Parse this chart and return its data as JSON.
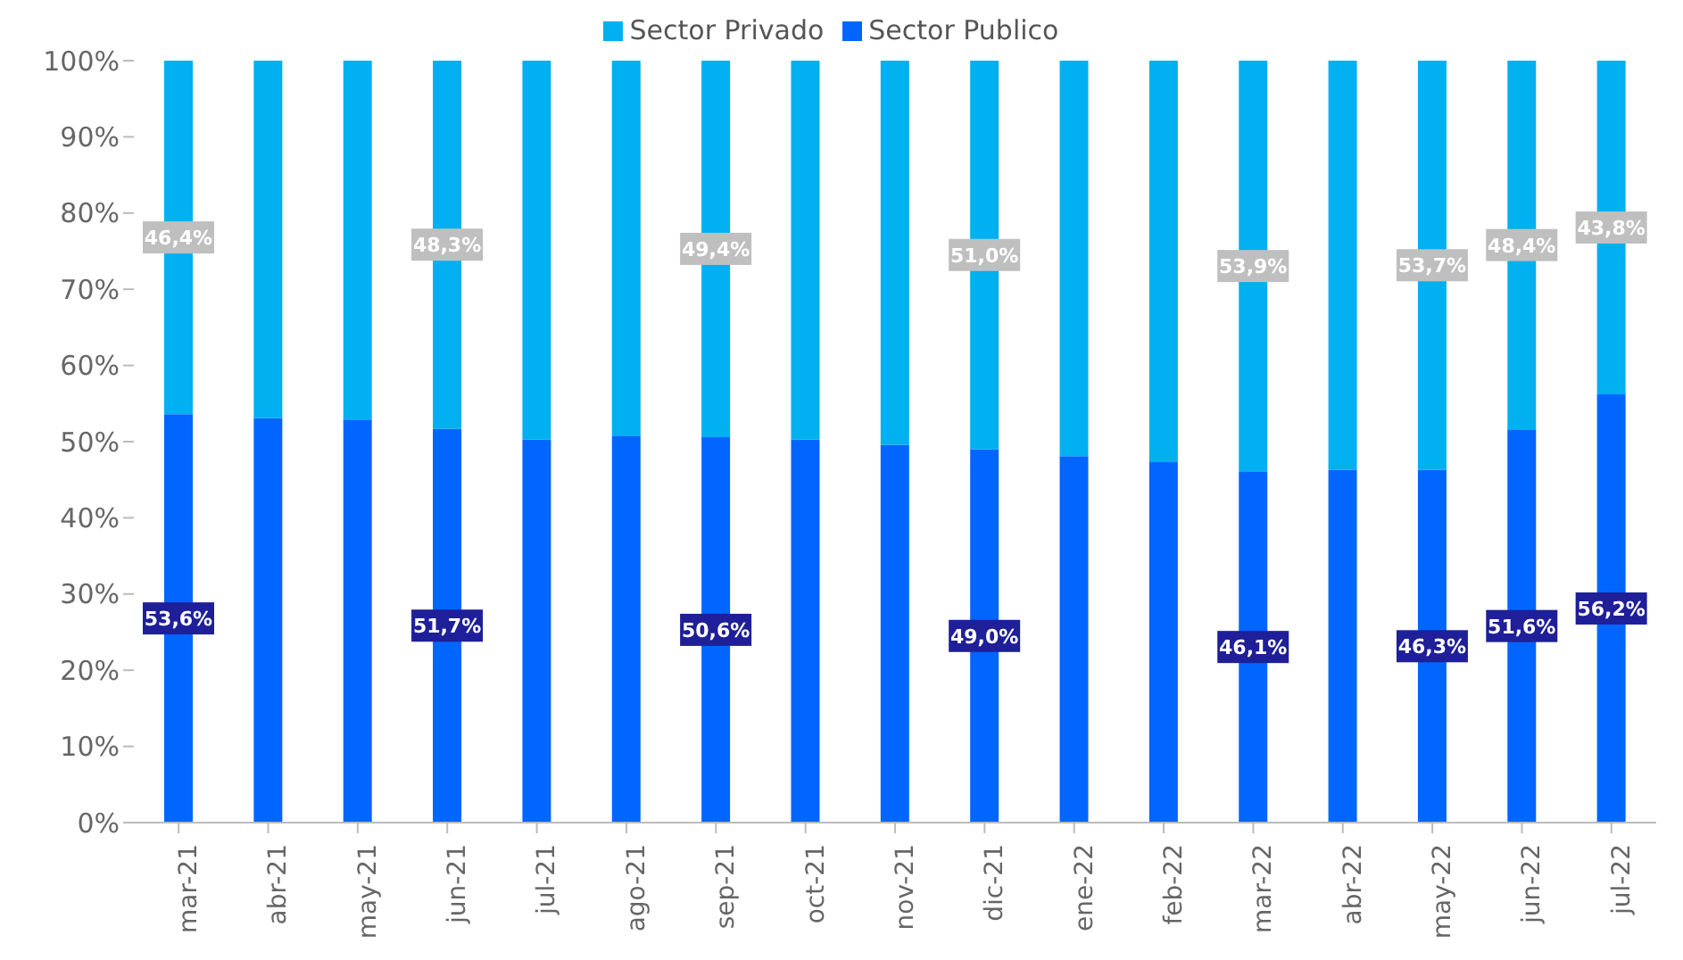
{
  "chart_data": {
    "type": "bar",
    "stacked": true,
    "legend": "top",
    "grid": false,
    "categories": [
      "mar-21",
      "abr-21",
      "may-21",
      "jun-21",
      "jul-21",
      "ago-21",
      "sep-21",
      "oct-21",
      "nov-21",
      "dic-21",
      "ene-22",
      "feb-22",
      "mar-22",
      "abr-22",
      "may-22",
      "jun-22",
      "jul-22"
    ],
    "ylim": [
      0,
      100
    ],
    "yticks": [
      {
        "value": 0,
        "label": "0%"
      },
      {
        "value": 10,
        "label": "10%"
      },
      {
        "value": 20,
        "label": "20%"
      },
      {
        "value": 30,
        "label": "30%"
      },
      {
        "value": 40,
        "label": "40%"
      },
      {
        "value": 50,
        "label": "50%"
      },
      {
        "value": 60,
        "label": "60%"
      },
      {
        "value": 70,
        "label": "70%"
      },
      {
        "value": 80,
        "label": "80%"
      },
      {
        "value": 90,
        "label": "90%"
      },
      {
        "value": 100,
        "label": "100%"
      }
    ],
    "series": [
      {
        "name": "Sector Publico",
        "color": "#0066ff",
        "values": [
          53.6,
          53.1,
          52.9,
          51.7,
          50.3,
          50.8,
          50.6,
          50.3,
          49.6,
          49.0,
          48.1,
          47.3,
          46.1,
          46.3,
          46.3,
          51.6,
          56.2
        ],
        "value_labels": [
          "53,6%",
          null,
          null,
          "51,7%",
          null,
          null,
          "50,6%",
          null,
          null,
          "49,0%",
          null,
          null,
          "46,1%",
          null,
          "46,3%",
          "51,6%",
          "56,2%"
        ]
      },
      {
        "name": "Sector Privado",
        "color": "#00b0f0",
        "values": [
          46.4,
          46.9,
          47.1,
          48.3,
          49.7,
          49.2,
          49.4,
          49.7,
          50.4,
          51.0,
          51.9,
          52.7,
          53.9,
          53.7,
          53.7,
          48.4,
          43.8
        ],
        "value_labels": [
          "46,4%",
          null,
          null,
          "48,3%",
          null,
          null,
          "49,4%",
          null,
          null,
          "51,0%",
          null,
          null,
          "53,9%",
          null,
          "53,7%",
          "48,4%",
          "43,8%"
        ]
      }
    ]
  }
}
